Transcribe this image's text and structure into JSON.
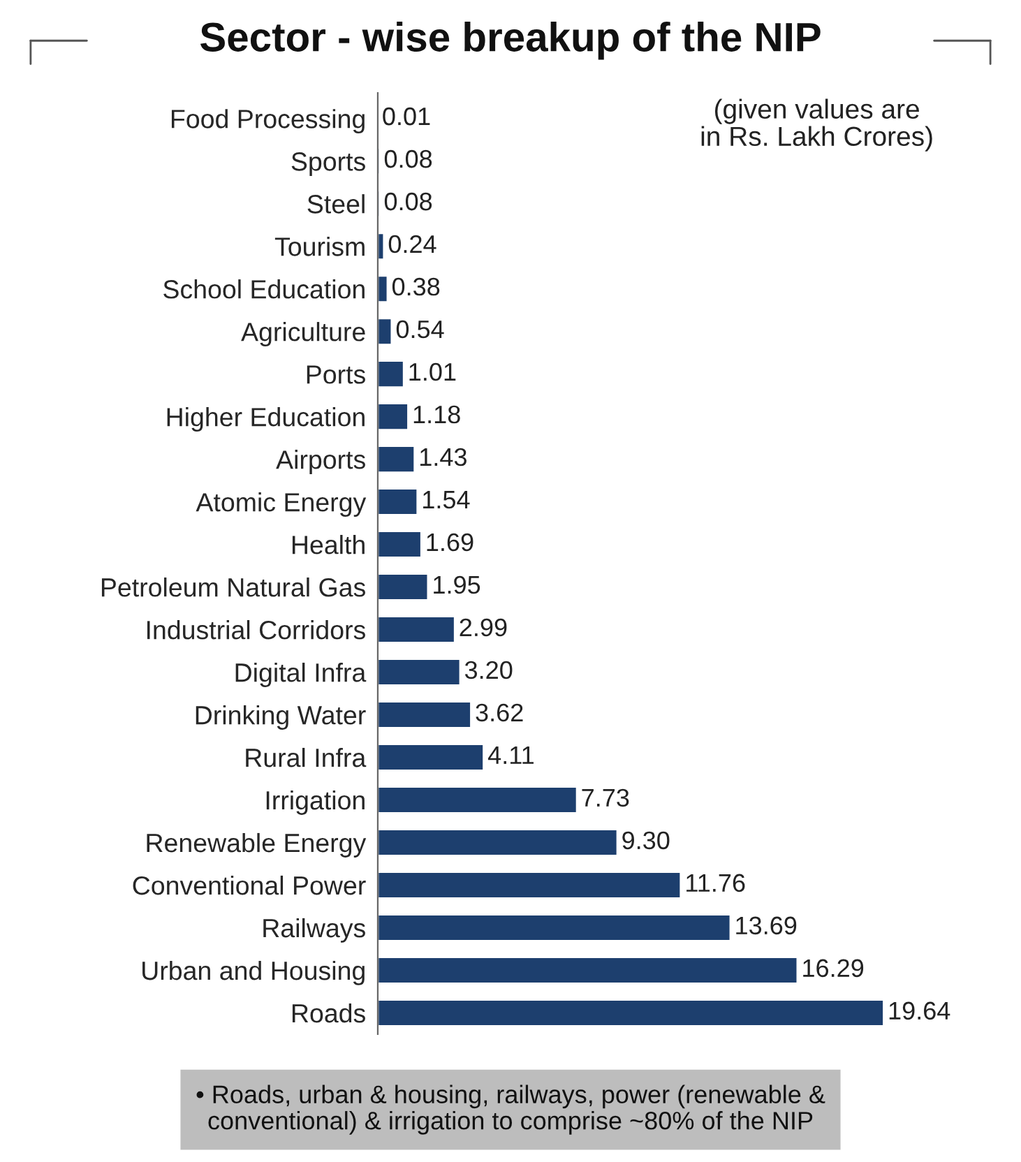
{
  "chart_data": {
    "type": "bar",
    "orientation": "horizontal",
    "title": "Sector - wise breakup of the NIP",
    "categories": [
      "Food Processing",
      "Sports",
      "Steel",
      "Tourism",
      "School Education",
      "Agriculture",
      "Ports",
      "Higher Education",
      "Airports",
      "Atomic Energy",
      "Health",
      "Petroleum Natural Gas",
      "Industrial Corridors",
      "Digital Infra",
      "Drinking Water",
      "Rural Infra",
      "Irrigation",
      "Renewable Energy",
      "Conventional Power",
      "Railways",
      "Urban and Housing",
      "Roads"
    ],
    "values": [
      0.01,
      0.08,
      0.08,
      0.24,
      0.38,
      0.54,
      1.01,
      1.18,
      1.43,
      1.54,
      1.69,
      1.95,
      2.99,
      3.2,
      3.62,
      4.11,
      7.73,
      9.3,
      11.76,
      13.69,
      16.29,
      19.64
    ],
    "value_labels": [
      "0.01",
      "0.08",
      "0.08",
      "0.24",
      "0.38",
      "0.54",
      "1.01",
      "1.18",
      "1.43",
      "1.54",
      "1.69",
      "1.95",
      "2.99",
      "3.20",
      "3.62",
      "4.11",
      "7.73",
      "9.30",
      "11.76",
      "13.69",
      "16.29",
      "19.64"
    ],
    "color": "#1d3f6e",
    "tick_labels": "y",
    "grid": false,
    "legend": false,
    "annotations": [
      "(given values are\nin Rs. Lakh Crores)",
      "• Roads, urban & housing, railways, power (renewable &\nconventional) & irrigation to comprise ~80% of the NIP"
    ]
  }
}
